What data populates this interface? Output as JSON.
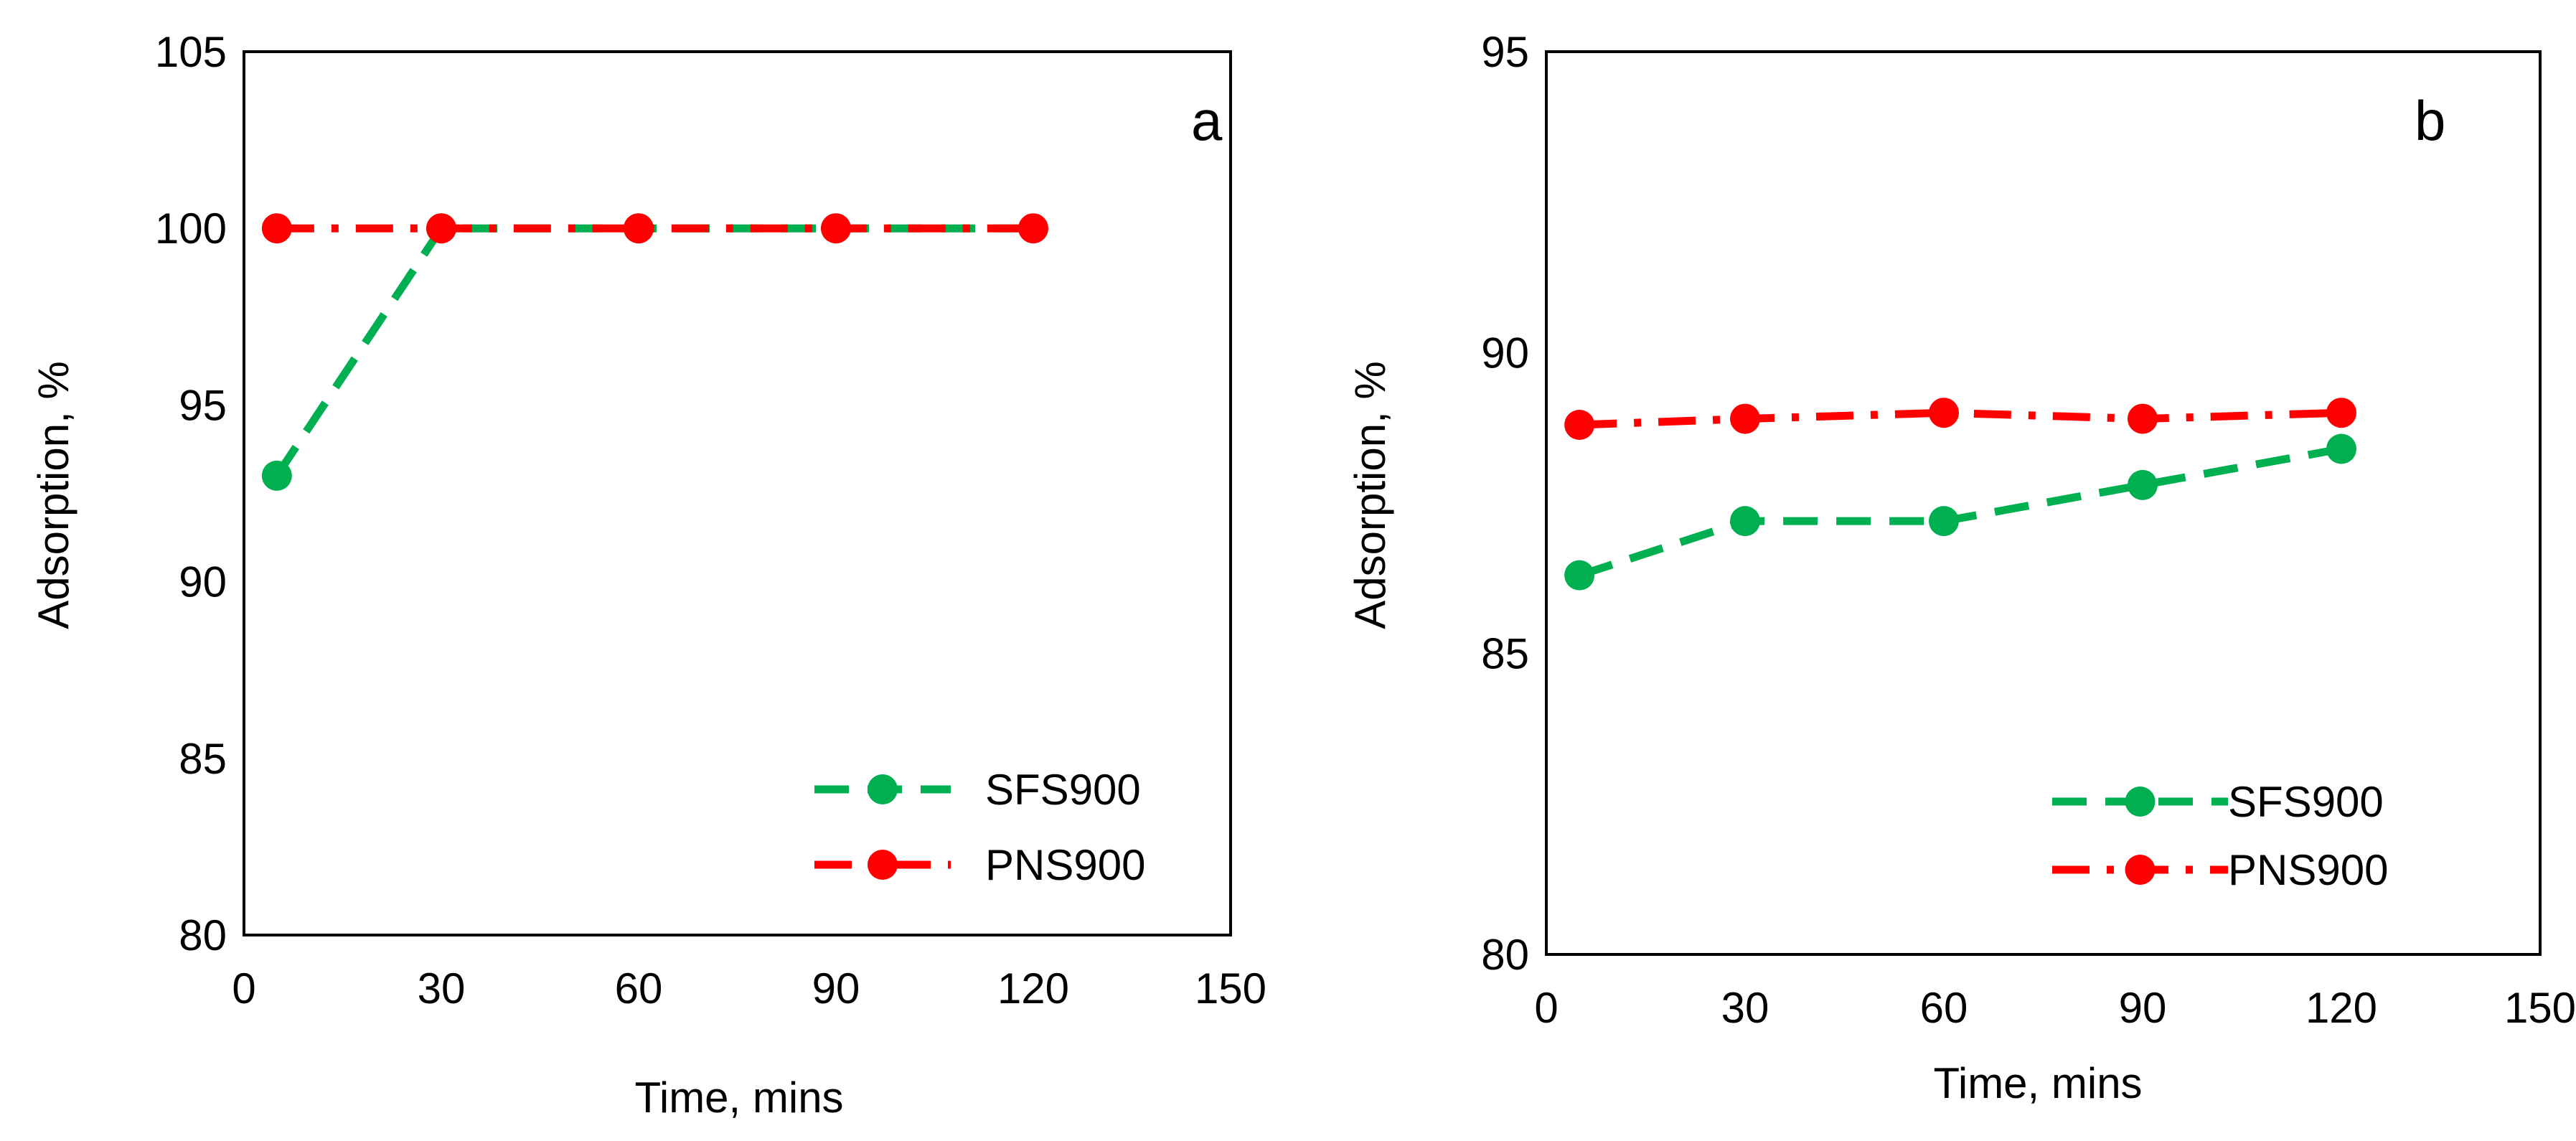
{
  "chart_data": [
    {
      "type": "line",
      "panel_label": "a",
      "xlabel": "Time, mins",
      "ylabel": "Adsorption, %",
      "xlim": [
        0,
        150
      ],
      "ylim": [
        80,
        105
      ],
      "x_ticks": [
        0,
        30,
        60,
        90,
        120,
        150
      ],
      "y_ticks": [
        80,
        85,
        90,
        95,
        100,
        105
      ],
      "grid": false,
      "legend_position": "bottom-right",
      "x": [
        5,
        30,
        60,
        90,
        120
      ],
      "series": [
        {
          "name": "SFS900",
          "color": "#00B050",
          "line_style": "dashed",
          "values": [
            93,
            100,
            100,
            100,
            100
          ],
          "show_last_marker": false
        },
        {
          "name": "PNS900",
          "color": "#FF0000",
          "line_style": "dash-dot",
          "values": [
            100,
            100,
            100,
            100,
            100
          ],
          "show_last_marker": true
        }
      ]
    },
    {
      "type": "line",
      "panel_label": "b",
      "xlabel": "Time, mins",
      "ylabel": "Adsorption, %",
      "xlim": [
        0,
        150
      ],
      "ylim": [
        80,
        95
      ],
      "x_ticks": [
        0,
        30,
        60,
        90,
        120,
        150
      ],
      "y_ticks": [
        80,
        85,
        90,
        95
      ],
      "grid": false,
      "legend_position": "bottom-right",
      "x": [
        5,
        30,
        60,
        90,
        120
      ],
      "series": [
        {
          "name": "SFS900",
          "color": "#00B050",
          "line_style": "dashed",
          "values": [
            86.3,
            87.2,
            87.2,
            87.8,
            88.4
          ],
          "show_last_marker": true
        },
        {
          "name": "PNS900",
          "color": "#FF0000",
          "line_style": "dash-dot",
          "values": [
            88.8,
            88.9,
            89.0,
            88.9,
            89.0
          ],
          "show_last_marker": true
        }
      ]
    }
  ]
}
